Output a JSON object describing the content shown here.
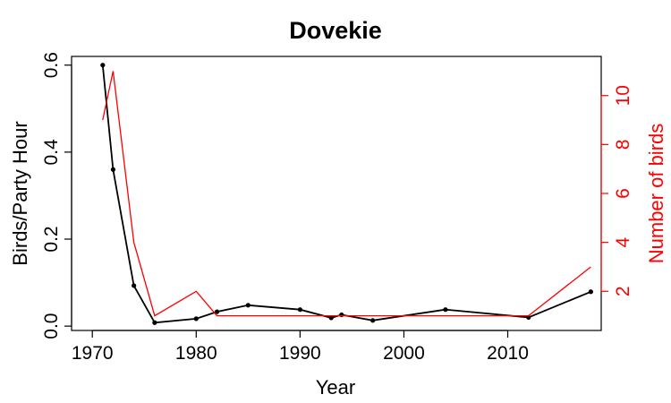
{
  "chart_data": {
    "type": "line",
    "title": "Dovekie",
    "xlabel": "Year",
    "ylabel": "Birds/Party Hour",
    "y2label": "Number of birds",
    "xlim": [
      1968,
      2019
    ],
    "ylim": [
      -0.01,
      0.62
    ],
    "y2lim": [
      0.4,
      11.6
    ],
    "x_ticks": [
      1970,
      1980,
      1990,
      2000,
      2010
    ],
    "y_ticks": [
      0.0,
      0.2,
      0.4,
      0.6
    ],
    "y2_ticks": [
      2,
      4,
      6,
      8,
      10
    ],
    "series": [
      {
        "axis": "left",
        "color": "#000000",
        "marker": "point",
        "points": [
          {
            "x": 1971,
            "y": 0.6
          },
          {
            "x": 1972,
            "y": 0.36
          },
          {
            "x": 1974,
            "y": 0.093
          },
          {
            "x": 1976,
            "y": 0.008
          },
          {
            "x": 1980,
            "y": 0.017
          },
          {
            "x": 1982,
            "y": 0.033
          },
          {
            "x": 1985,
            "y": 0.048
          },
          {
            "x": 1990,
            "y": 0.038
          },
          {
            "x": 1993,
            "y": 0.019
          },
          {
            "x": 1994,
            "y": 0.026
          },
          {
            "x": 1997,
            "y": 0.013
          },
          {
            "x": 2004,
            "y": 0.038
          },
          {
            "x": 2012,
            "y": 0.02
          },
          {
            "x": 2018,
            "y": 0.079
          }
        ]
      },
      {
        "axis": "right",
        "color": "#ff0000",
        "marker": "none",
        "points": [
          {
            "x": 1971,
            "y": 9
          },
          {
            "x": 1972,
            "y": 11
          },
          {
            "x": 1974,
            "y": 4
          },
          {
            "x": 1976,
            "y": 1
          },
          {
            "x": 1980,
            "y": 2
          },
          {
            "x": 1982,
            "y": 1
          },
          {
            "x": 1985,
            "y": 1
          },
          {
            "x": 1990,
            "y": 1
          },
          {
            "x": 1993,
            "y": 1
          },
          {
            "x": 1994,
            "y": 1
          },
          {
            "x": 1997,
            "y": 1
          },
          {
            "x": 2004,
            "y": 1
          },
          {
            "x": 2012,
            "y": 1
          },
          {
            "x": 2018,
            "y": 3
          }
        ]
      }
    ],
    "grid": false,
    "legend": "none",
    "colors": {
      "axis": "#000000",
      "secondary_axis": "#ff0000"
    }
  }
}
